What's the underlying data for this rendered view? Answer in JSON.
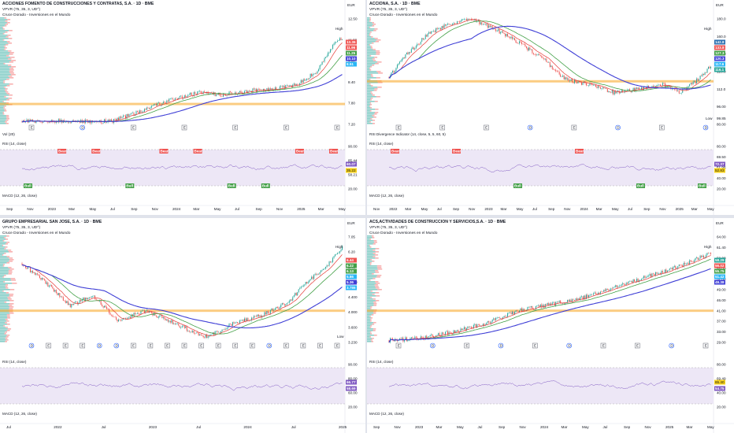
{
  "colors": {
    "up": "#26a69a",
    "down": "#ef5350",
    "ma_fast": "#e53935",
    "ma_mid": "#43a047",
    "ma_slow": "#3f3fd6",
    "rsi": "#7e57c2",
    "rsi_band": "#ede7f6",
    "orange": "#f7a21b",
    "price_line": "#131722"
  },
  "panes": [
    {
      "id": "tl",
      "title": "ACCIONES FOMENTO DE CONSTRUCCIONES Y CONTRATAS, S.A. · 1D · BME",
      "vpvr": "VPVR (75, 35, 3, UD^)",
      "study": "Cruce Dorado - Inversiones en el Mundo",
      "currency": "EUR",
      "vol": "Vol (20)",
      "rsi": "RSI (14, close)",
      "macd": "MACD (12, 26, close)",
      "price_ticks": [
        "12.50",
        "11.00",
        "9.60",
        "8.40",
        "7.80",
        "7.20"
      ],
      "tags": [
        {
          "t": "13.36",
          "c": "#ef5350"
        },
        {
          "t": "11.96",
          "c": "#ef5350"
        },
        {
          "t": "11.25",
          "c": "#43a047"
        },
        {
          "t": "10.10",
          "c": "#3f3fd6"
        },
        {
          "t": "8.51",
          "c": "#29b6f6"
        }
      ],
      "high": "High",
      "rsi_ticks": [
        "90.00",
        "85.44",
        "58.21",
        "20.00"
      ],
      "rsi_tags": [
        {
          "t": "60.07",
          "c": "#7e57c2"
        },
        {
          "t": "35.22",
          "c": "#f7d21b"
        }
      ],
      "x_labels": [
        "Sep",
        "Nov",
        "2023",
        "Mar",
        "May",
        "Jul",
        "Sep",
        "Nov",
        "2024",
        "Mar",
        "May",
        "Jul",
        "Sep",
        "Nov",
        "2025",
        "Mar",
        "May"
      ],
      "signals": [
        "Bull",
        "Bear",
        "Bear",
        "Bull",
        "Bear",
        "Bear",
        "Bull",
        "Bull",
        "Bear",
        "Bear"
      ],
      "events": [
        "E",
        "D",
        "E",
        "E",
        "E",
        "E",
        "E"
      ]
    },
    {
      "id": "tr",
      "title": "ACCIONA, S.A. · 1D · BME",
      "vpvr": "VPVR (75, 35, 3, UD^)",
      "study": "Cruce Dorado - Inversiones en el Mundo",
      "currency": "EUR",
      "rsi_div": "RSI Divergence Indicator (14, close, 5, 5, 60, 5)",
      "macd": "MACD (12, 26, close)",
      "rsi": "RSI (14, close)",
      "price_ticks": [
        "180.0",
        "160.0",
        "140.0",
        "120.0",
        "112.0",
        "96.00",
        "80.00"
      ],
      "tags": [
        {
          "t": "142.8",
          "c": "#2a6fb0"
        },
        {
          "t": "133.8",
          "c": "#ef5350"
        },
        {
          "t": "127.3",
          "c": "#43a047"
        },
        {
          "t": "120.3",
          "c": "#3f3fd6"
        },
        {
          "t": "117.6",
          "c": "#29b6f6"
        },
        {
          "t": "116.1",
          "c": "#26a69a"
        }
      ],
      "low": "Low",
      "low_val": "99.85",
      "high": "High",
      "rsi_ticks": [
        "80.00",
        "69.50",
        "51.96",
        "40.00",
        "20.00"
      ],
      "rsi_tags": [
        {
          "t": "72.37",
          "c": "#7e57c2"
        },
        {
          "t": "52.83",
          "c": "#f7d21b"
        }
      ],
      "x_labels": [
        "Nov",
        "2022",
        "Mar",
        "May",
        "Jul",
        "Sep",
        "Nov",
        "2023",
        "Mar",
        "May",
        "Jul",
        "Sep",
        "Nov",
        "2024",
        "Mar",
        "May",
        "Jul",
        "Sep",
        "Nov",
        "2025",
        "Mar",
        "May"
      ],
      "signals": [
        "Bear",
        "Bear",
        "Bull",
        "Bear",
        "Bull",
        "Bull"
      ],
      "events": [
        "E",
        "E",
        "E",
        "D",
        "E",
        "D",
        "E",
        "D"
      ]
    },
    {
      "id": "bl",
      "title": "GRUPO EMPRESARIAL SAN JOSE, S.A. · 1D · BME",
      "vpvr": "VPVR (75, 35, 3, UD^)",
      "study": "Cruce Dorado - Inversiones en el Mundo",
      "currency": "EUR",
      "rsi": "RSI (14, close)",
      "macd": "MACD (12, 26, close)",
      "price_ticks": [
        "7.05",
        "6.20",
        "5.40",
        "4.800",
        "4.400",
        "4.000",
        "3.600",
        "3.230"
      ],
      "tags": [
        {
          "t": "6.44",
          "c": "#ef5350"
        },
        {
          "t": "6.22",
          "c": "#43a047"
        },
        {
          "t": "6.13",
          "c": "#43a047"
        },
        {
          "t": "5.86",
          "c": "#29b6f6"
        },
        {
          "t": "5.36",
          "c": "#3f3fd6"
        },
        {
          "t": "3.786",
          "c": "#29b6f6"
        }
      ],
      "high": "High",
      "low": "Low",
      "rsi_ticks": [
        "90.00",
        "80.00",
        "60.00",
        "20.00"
      ],
      "rsi_tags": [
        {
          "t": "66.77",
          "c": "#7e57c2"
        },
        {
          "t": "58.69",
          "c": "#7e57c2"
        }
      ],
      "x_labels": [
        "Jul",
        "2022",
        "Jul",
        "2023",
        "Jul",
        "2024",
        "Jul",
        "2025"
      ],
      "events": [
        "D",
        "E",
        "E",
        "E",
        "D",
        "D",
        "E",
        "E",
        "E",
        "E",
        "E",
        "E",
        "E",
        "E",
        "D",
        "E",
        "E",
        "E",
        "E"
      ]
    },
    {
      "id": "br",
      "title": "ACS,ACTIVIDADES DE CONSTRUCCION Y SERVICIOS,S.A. · 1D · BME",
      "vpvr": "VPVR (75, 35, 3, UD^)",
      "study": "Cruce Dorado - Inversiones en el Mundo",
      "currency": "EUR",
      "rsi": "RSI (14, close)",
      "macd": "MACD (12, 26, close)",
      "price_ticks": [
        "64.00",
        "61.40",
        "58.00",
        "55.00",
        "52.00",
        "49.00",
        "46.00",
        "41.00",
        "37.00",
        "33.00",
        "29.00"
      ],
      "tags": [
        {
          "t": "58.29",
          "c": "#26a69a"
        },
        {
          "t": "56.02",
          "c": "#ef5350"
        },
        {
          "t": "55.75",
          "c": "#43a047"
        },
        {
          "t": "51.42",
          "c": "#29b6f6"
        },
        {
          "t": "49.38",
          "c": "#3f3fd6"
        }
      ],
      "high": "High",
      "rsi_ticks": [
        "80.00",
        "69.49",
        "40.00",
        "20.00"
      ],
      "rsi_tags": [
        {
          "t": "65.40",
          "c": "#f7d21b"
        },
        {
          "t": "54.75",
          "c": "#7e57c2"
        }
      ],
      "x_labels": [
        "Sep",
        "Nov",
        "2023",
        "Mar",
        "May",
        "Jul",
        "Sep",
        "Nov",
        "2024",
        "Mar",
        "May",
        "Jul",
        "Sep",
        "Nov",
        "2025",
        "Mar",
        "May"
      ],
      "events": [
        "E",
        "D",
        "E",
        "D",
        "E",
        "D",
        "E",
        "E",
        "D",
        "E"
      ]
    }
  ]
}
